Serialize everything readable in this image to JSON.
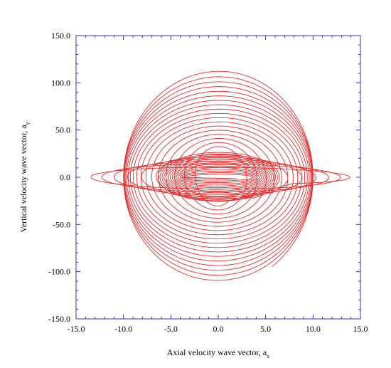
{
  "chart_data": {
    "type": "line",
    "title": "",
    "xlabel": "Axial velocity wave vector, a",
    "xlabel_sub": "x",
    "ylabel": "Vertical velocity wave vector, a",
    "ylabel_sub": "y",
    "xlim": [
      -15.0,
      15.0
    ],
    "ylim": [
      -150.0,
      150.0
    ],
    "x_ticks": [
      "-15.0",
      "-10.0",
      "-5.0",
      "0.0",
      "5.0",
      "10.0",
      "15.0"
    ],
    "y_ticks": [
      "150.0",
      "100.0",
      "50.0",
      "0.0",
      "-50.0",
      "-100.0",
      "-150.0"
    ],
    "x_tick_values": [
      -15,
      -10,
      -5,
      0,
      5,
      10,
      15
    ],
    "y_tick_values": [
      150,
      100,
      50,
      0,
      -50,
      -100,
      -150
    ],
    "grid": false,
    "legend": "none",
    "frame_color": "#3030c0",
    "series_color": "#e03030",
    "series": [
      {
        "description_kind": "spiral trajectory",
        "tall_loops": {
          "x_extent_start": 10.0,
          "x_extent_end": 2.0,
          "x_extent_exp": 2.8,
          "y_extent_start": 115.0,
          "y_extent_end": 30.0,
          "y_extent_exp": 0.9,
          "turns": 18,
          "start_point": [
            6.0,
            -100.0
          ]
        },
        "wide_loops": {
          "x_extent_start": 14.0,
          "x_extent_end": 6.0,
          "x_extent_exp": 1.2,
          "y_extent_start": 8.0,
          "y_extent_end": 25.0,
          "y_extent_exp": 0.7,
          "turns": 6
        },
        "core_loops": {
          "x_extent_start": 6.5,
          "x_extent_end": 3.5,
          "y_extent_start": 27.0,
          "y_extent_end": 2.0,
          "turns": 14,
          "end_point": [
            -4.0,
            0.0
          ]
        }
      }
    ]
  }
}
